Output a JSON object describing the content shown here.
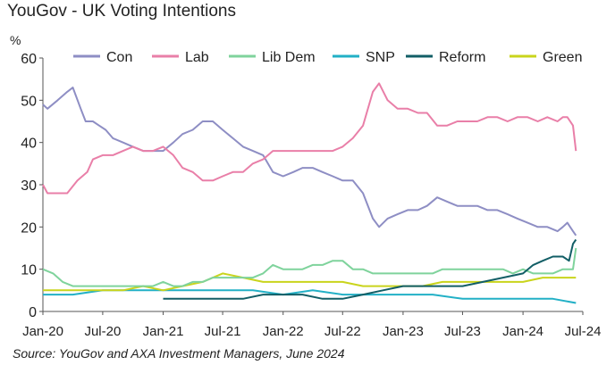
{
  "chart_data": {
    "type": "line",
    "title": "YouGov - UK Voting Intentions",
    "ylabel": "%",
    "xlabel": "",
    "source": "Source:  YouGov and AXA Investment Managers, June 2024",
    "ylim": [
      0,
      60
    ],
    "yticks": [
      0,
      10,
      20,
      30,
      40,
      50,
      60
    ],
    "xlim": [
      "2020-01-01",
      "2024-07-01"
    ],
    "xticks": [
      "Jan-20",
      "Jul-20",
      "Jan-21",
      "Jul-21",
      "Jan-22",
      "Jul-22",
      "Jan-23",
      "Jul-23",
      "Jan-24",
      "Jul-24"
    ],
    "grid": false,
    "legend_position": "top",
    "series": [
      {
        "name": "Con",
        "color": "#8e8ec4",
        "points": [
          [
            "2020-01-01",
            49
          ],
          [
            "2020-01-15",
            48
          ],
          [
            "2020-02-15",
            50
          ],
          [
            "2020-03-15",
            52
          ],
          [
            "2020-04-01",
            53
          ],
          [
            "2020-04-25",
            48
          ],
          [
            "2020-05-10",
            45
          ],
          [
            "2020-06-01",
            45
          ],
          [
            "2020-06-20",
            44
          ],
          [
            "2020-07-10",
            43
          ],
          [
            "2020-08-01",
            41
          ],
          [
            "2020-09-01",
            40
          ],
          [
            "2020-10-01",
            39
          ],
          [
            "2020-11-01",
            38
          ],
          [
            "2020-12-01",
            38
          ],
          [
            "2021-01-01",
            38
          ],
          [
            "2021-02-01",
            40
          ],
          [
            "2021-03-01",
            42
          ],
          [
            "2021-04-01",
            43
          ],
          [
            "2021-05-01",
            45
          ],
          [
            "2021-06-01",
            45
          ],
          [
            "2021-07-01",
            43
          ],
          [
            "2021-08-01",
            41
          ],
          [
            "2021-09-01",
            39
          ],
          [
            "2021-10-01",
            38
          ],
          [
            "2021-11-01",
            37
          ],
          [
            "2021-12-01",
            33
          ],
          [
            "2022-01-01",
            32
          ],
          [
            "2022-02-01",
            33
          ],
          [
            "2022-03-01",
            34
          ],
          [
            "2022-04-01",
            34
          ],
          [
            "2022-05-01",
            33
          ],
          [
            "2022-06-01",
            32
          ],
          [
            "2022-07-01",
            31
          ],
          [
            "2022-08-01",
            31
          ],
          [
            "2022-09-01",
            28
          ],
          [
            "2022-10-01",
            22
          ],
          [
            "2022-10-20",
            20
          ],
          [
            "2022-11-15",
            22
          ],
          [
            "2022-12-15",
            23
          ],
          [
            "2023-01-15",
            24
          ],
          [
            "2023-02-15",
            24
          ],
          [
            "2023-03-15",
            25
          ],
          [
            "2023-04-15",
            27
          ],
          [
            "2023-05-15",
            26
          ],
          [
            "2023-06-15",
            25
          ],
          [
            "2023-07-15",
            25
          ],
          [
            "2023-08-15",
            25
          ],
          [
            "2023-09-15",
            24
          ],
          [
            "2023-10-15",
            24
          ],
          [
            "2023-11-15",
            23
          ],
          [
            "2023-12-15",
            22
          ],
          [
            "2024-01-15",
            21
          ],
          [
            "2024-02-15",
            20
          ],
          [
            "2024-03-15",
            20
          ],
          [
            "2024-04-15",
            19
          ],
          [
            "2024-05-01",
            20
          ],
          [
            "2024-05-15",
            21
          ],
          [
            "2024-06-01",
            19
          ],
          [
            "2024-06-10",
            18
          ]
        ]
      },
      {
        "name": "Lab",
        "color": "#e97fa8",
        "points": [
          [
            "2020-01-01",
            30
          ],
          [
            "2020-01-15",
            28
          ],
          [
            "2020-02-15",
            28
          ],
          [
            "2020-03-15",
            28
          ],
          [
            "2020-04-15",
            31
          ],
          [
            "2020-05-15",
            33
          ],
          [
            "2020-06-01",
            36
          ],
          [
            "2020-07-01",
            37
          ],
          [
            "2020-08-01",
            37
          ],
          [
            "2020-09-01",
            38
          ],
          [
            "2020-10-01",
            39
          ],
          [
            "2020-11-01",
            38
          ],
          [
            "2020-12-01",
            38
          ],
          [
            "2021-01-01",
            39
          ],
          [
            "2021-02-01",
            37
          ],
          [
            "2021-03-01",
            34
          ],
          [
            "2021-04-01",
            33
          ],
          [
            "2021-05-01",
            31
          ],
          [
            "2021-06-01",
            31
          ],
          [
            "2021-07-01",
            32
          ],
          [
            "2021-08-01",
            33
          ],
          [
            "2021-09-01",
            33
          ],
          [
            "2021-10-01",
            35
          ],
          [
            "2021-11-01",
            36
          ],
          [
            "2021-12-01",
            38
          ],
          [
            "2022-01-01",
            38
          ],
          [
            "2022-02-01",
            38
          ],
          [
            "2022-03-01",
            38
          ],
          [
            "2022-04-01",
            38
          ],
          [
            "2022-05-01",
            38
          ],
          [
            "2022-06-01",
            38
          ],
          [
            "2022-07-01",
            39
          ],
          [
            "2022-08-01",
            41
          ],
          [
            "2022-09-01",
            44
          ],
          [
            "2022-10-01",
            52
          ],
          [
            "2022-10-20",
            54
          ],
          [
            "2022-11-15",
            50
          ],
          [
            "2022-12-15",
            48
          ],
          [
            "2023-01-15",
            48
          ],
          [
            "2023-02-15",
            47
          ],
          [
            "2023-03-15",
            47
          ],
          [
            "2023-04-15",
            44
          ],
          [
            "2023-05-15",
            44
          ],
          [
            "2023-06-15",
            45
          ],
          [
            "2023-07-15",
            45
          ],
          [
            "2023-08-15",
            45
          ],
          [
            "2023-09-15",
            46
          ],
          [
            "2023-10-15",
            46
          ],
          [
            "2023-11-15",
            45
          ],
          [
            "2023-12-15",
            46
          ],
          [
            "2024-01-15",
            46
          ],
          [
            "2024-02-15",
            45
          ],
          [
            "2024-03-15",
            46
          ],
          [
            "2024-04-15",
            45
          ],
          [
            "2024-05-01",
            46
          ],
          [
            "2024-05-15",
            46
          ],
          [
            "2024-06-01",
            44
          ],
          [
            "2024-06-10",
            38
          ]
        ]
      },
      {
        "name": "Lib Dem",
        "color": "#7fd39c",
        "points": [
          [
            "2020-01-01",
            10
          ],
          [
            "2020-02-01",
            9
          ],
          [
            "2020-03-01",
            7
          ],
          [
            "2020-04-01",
            6
          ],
          [
            "2020-05-01",
            6
          ],
          [
            "2020-06-01",
            6
          ],
          [
            "2020-07-01",
            6
          ],
          [
            "2020-08-01",
            6
          ],
          [
            "2020-09-01",
            6
          ],
          [
            "2020-10-01",
            6
          ],
          [
            "2020-11-01",
            6
          ],
          [
            "2020-12-01",
            6
          ],
          [
            "2021-01-01",
            7
          ],
          [
            "2021-02-01",
            6
          ],
          [
            "2021-03-01",
            6
          ],
          [
            "2021-04-01",
            7
          ],
          [
            "2021-05-01",
            7
          ],
          [
            "2021-06-01",
            8
          ],
          [
            "2021-07-01",
            8
          ],
          [
            "2021-08-01",
            8
          ],
          [
            "2021-09-01",
            8
          ],
          [
            "2021-10-01",
            8
          ],
          [
            "2021-11-01",
            9
          ],
          [
            "2021-12-01",
            11
          ],
          [
            "2022-01-01",
            10
          ],
          [
            "2022-02-01",
            10
          ],
          [
            "2022-03-01",
            10
          ],
          [
            "2022-04-01",
            11
          ],
          [
            "2022-05-01",
            11
          ],
          [
            "2022-06-01",
            12
          ],
          [
            "2022-07-01",
            12
          ],
          [
            "2022-08-01",
            10
          ],
          [
            "2022-09-01",
            10
          ],
          [
            "2022-10-01",
            9
          ],
          [
            "2022-11-01",
            9
          ],
          [
            "2022-12-01",
            9
          ],
          [
            "2023-01-01",
            9
          ],
          [
            "2023-02-01",
            9
          ],
          [
            "2023-03-01",
            9
          ],
          [
            "2023-04-01",
            9
          ],
          [
            "2023-05-01",
            10
          ],
          [
            "2023-06-01",
            10
          ],
          [
            "2023-07-01",
            10
          ],
          [
            "2023-08-01",
            10
          ],
          [
            "2023-09-01",
            10
          ],
          [
            "2023-10-01",
            10
          ],
          [
            "2023-11-01",
            10
          ],
          [
            "2023-12-01",
            9
          ],
          [
            "2024-01-01",
            10
          ],
          [
            "2024-02-01",
            9
          ],
          [
            "2024-03-01",
            9
          ],
          [
            "2024-04-01",
            9
          ],
          [
            "2024-05-01",
            10
          ],
          [
            "2024-06-01",
            10
          ],
          [
            "2024-06-10",
            15
          ]
        ]
      },
      {
        "name": "SNP",
        "color": "#22b0c6",
        "points": [
          [
            "2020-01-01",
            4
          ],
          [
            "2020-04-01",
            4
          ],
          [
            "2020-07-01",
            5
          ],
          [
            "2020-10-01",
            5
          ],
          [
            "2021-01-01",
            5
          ],
          [
            "2021-04-01",
            5
          ],
          [
            "2021-07-01",
            5
          ],
          [
            "2021-10-01",
            5
          ],
          [
            "2022-01-01",
            4
          ],
          [
            "2022-04-01",
            5
          ],
          [
            "2022-07-01",
            4
          ],
          [
            "2022-10-01",
            4
          ],
          [
            "2023-01-01",
            4
          ],
          [
            "2023-04-01",
            4
          ],
          [
            "2023-07-01",
            3
          ],
          [
            "2023-10-01",
            3
          ],
          [
            "2024-01-01",
            3
          ],
          [
            "2024-04-01",
            3
          ],
          [
            "2024-06-10",
            2
          ]
        ]
      },
      {
        "name": "Reform",
        "color": "#125e66",
        "points": [
          [
            "2021-01-01",
            3
          ],
          [
            "2021-03-01",
            3
          ],
          [
            "2021-05-01",
            3
          ],
          [
            "2021-07-01",
            3
          ],
          [
            "2021-09-01",
            3
          ],
          [
            "2021-11-01",
            4
          ],
          [
            "2022-01-01",
            4
          ],
          [
            "2022-03-01",
            4
          ],
          [
            "2022-05-01",
            3
          ],
          [
            "2022-07-01",
            3
          ],
          [
            "2022-09-01",
            4
          ],
          [
            "2022-11-01",
            5
          ],
          [
            "2023-01-01",
            6
          ],
          [
            "2023-03-01",
            6
          ],
          [
            "2023-05-01",
            6
          ],
          [
            "2023-07-01",
            6
          ],
          [
            "2023-09-01",
            7
          ],
          [
            "2023-11-01",
            8
          ],
          [
            "2024-01-01",
            9
          ],
          [
            "2024-02-01",
            11
          ],
          [
            "2024-03-01",
            12
          ],
          [
            "2024-04-01",
            13
          ],
          [
            "2024-05-01",
            13
          ],
          [
            "2024-05-20",
            12
          ],
          [
            "2024-06-01",
            16
          ],
          [
            "2024-06-10",
            17
          ]
        ]
      },
      {
        "name": "Green",
        "color": "#c9d41c",
        "points": [
          [
            "2020-01-01",
            5
          ],
          [
            "2020-03-01",
            5
          ],
          [
            "2020-05-01",
            5
          ],
          [
            "2020-07-01",
            5
          ],
          [
            "2020-09-01",
            5
          ],
          [
            "2020-11-01",
            6
          ],
          [
            "2021-01-01",
            5
          ],
          [
            "2021-03-01",
            6
          ],
          [
            "2021-05-01",
            7
          ],
          [
            "2021-07-01",
            9
          ],
          [
            "2021-09-01",
            8
          ],
          [
            "2021-11-01",
            7
          ],
          [
            "2022-01-01",
            7
          ],
          [
            "2022-03-01",
            7
          ],
          [
            "2022-05-01",
            7
          ],
          [
            "2022-07-01",
            7
          ],
          [
            "2022-09-01",
            6
          ],
          [
            "2022-11-01",
            6
          ],
          [
            "2023-01-01",
            6
          ],
          [
            "2023-03-01",
            6
          ],
          [
            "2023-05-01",
            7
          ],
          [
            "2023-07-01",
            7
          ],
          [
            "2023-09-01",
            7
          ],
          [
            "2023-11-01",
            7
          ],
          [
            "2024-01-01",
            7
          ],
          [
            "2024-03-01",
            8
          ],
          [
            "2024-05-01",
            8
          ],
          [
            "2024-06-10",
            8
          ]
        ]
      }
    ]
  }
}
